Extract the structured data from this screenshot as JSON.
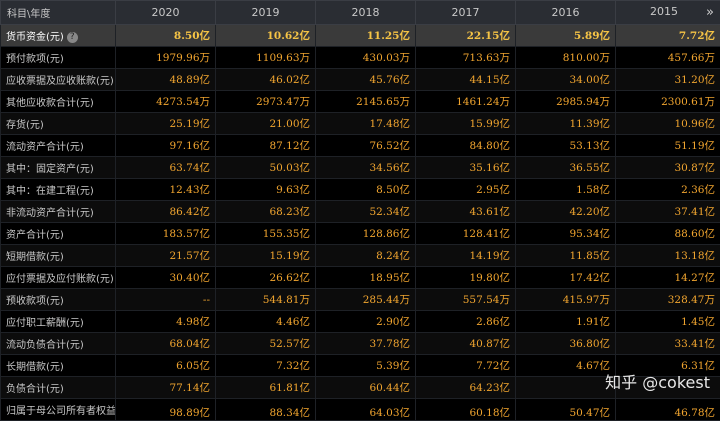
{
  "header": {
    "label": "科目\\年度",
    "years": [
      "2020",
      "2019",
      "2018",
      "2017",
      "2016",
      "2015"
    ],
    "next": "»"
  },
  "rows": [
    {
      "name": "货币资金(元)",
      "values": [
        "8.50亿",
        "10.62亿",
        "11.25亿",
        "22.15亿",
        "5.89亿",
        "7.72亿"
      ]
    },
    {
      "name": "预付款项(元)",
      "values": [
        "1979.96万",
        "1109.63万",
        "430.03万",
        "713.63万",
        "810.00万",
        "457.66万"
      ]
    },
    {
      "name": "应收票据及应收账款(元)",
      "values": [
        "48.89亿",
        "46.02亿",
        "45.76亿",
        "44.15亿",
        "34.00亿",
        "31.20亿"
      ]
    },
    {
      "name": "其他应收款合计(元)",
      "values": [
        "4273.54万",
        "2973.47万",
        "2145.65万",
        "1461.24万",
        "2985.94万",
        "2300.61万"
      ]
    },
    {
      "name": "存货(元)",
      "values": [
        "25.19亿",
        "21.00亿",
        "17.48亿",
        "15.99亿",
        "11.39亿",
        "10.96亿"
      ]
    },
    {
      "name": "流动资产合计(元)",
      "values": [
        "97.16亿",
        "87.12亿",
        "76.52亿",
        "84.80亿",
        "53.13亿",
        "51.19亿"
      ]
    },
    {
      "name": "其中：固定资产(元)",
      "values": [
        "63.74亿",
        "50.03亿",
        "34.56亿",
        "35.16亿",
        "36.55亿",
        "30.87亿"
      ]
    },
    {
      "name": "其中：在建工程(元)",
      "values": [
        "12.43亿",
        "9.63亿",
        "8.50亿",
        "2.95亿",
        "1.58亿",
        "2.36亿"
      ]
    },
    {
      "name": "非流动资产合计(元)",
      "values": [
        "86.42亿",
        "68.23亿",
        "52.34亿",
        "43.61亿",
        "42.20亿",
        "37.41亿"
      ]
    },
    {
      "name": "资产合计(元)",
      "values": [
        "183.57亿",
        "155.35亿",
        "128.86亿",
        "128.41亿",
        "95.34亿",
        "88.60亿"
      ]
    },
    {
      "name": "短期借款(元)",
      "values": [
        "21.57亿",
        "15.19亿",
        "8.24亿",
        "14.19亿",
        "11.85亿",
        "13.18亿"
      ]
    },
    {
      "name": "应付票据及应付账款(元)",
      "values": [
        "30.40亿",
        "26.62亿",
        "18.95亿",
        "19.80亿",
        "17.42亿",
        "14.27亿"
      ]
    },
    {
      "name": "预收款项(元)",
      "values": [
        "--",
        "544.81万",
        "285.44万",
        "557.54万",
        "415.97万",
        "328.47万"
      ]
    },
    {
      "name": "应付职工薪酬(元)",
      "values": [
        "4.98亿",
        "4.46亿",
        "2.90亿",
        "2.86亿",
        "1.91亿",
        "1.45亿"
      ]
    },
    {
      "name": "流动负债合计(元)",
      "values": [
        "68.04亿",
        "52.57亿",
        "37.78亿",
        "40.87亿",
        "36.80亿",
        "33.41亿"
      ]
    },
    {
      "name": "长期借款(元)",
      "values": [
        "6.05亿",
        "7.32亿",
        "5.39亿",
        "7.72亿",
        "4.67亿",
        "6.31亿"
      ]
    },
    {
      "name": "负债合计(元)",
      "values": [
        "77.14亿",
        "61.81亿",
        "60.44亿",
        "64.23亿",
        "",
        ""
      ]
    },
    {
      "name": "归属于母公司所有者权益",
      "values": [
        "98.89亿",
        "88.34亿",
        "64.03亿",
        "60.18亿",
        "50.47亿",
        "46.78亿"
      ]
    }
  ],
  "watermark": "知乎 @cokest"
}
